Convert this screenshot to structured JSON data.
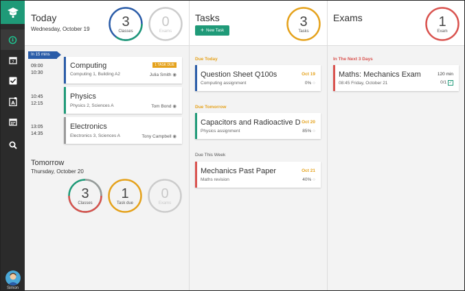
{
  "user": {
    "name": "Simon"
  },
  "colors": {
    "accent": "#1f9a78",
    "blue": "#2a5ca8",
    "orange": "#e5a21c",
    "red": "#d9534f",
    "grey": "#cccccc"
  },
  "sidebar": {
    "items": [
      {
        "icon": "dashboard-icon"
      },
      {
        "icon": "calendar-day-icon"
      },
      {
        "icon": "checkbox-icon"
      },
      {
        "icon": "exam-icon"
      },
      {
        "icon": "calendar-icon"
      },
      {
        "icon": "search-icon"
      }
    ]
  },
  "today": {
    "title": "Today",
    "date": "Wednesday, October 19",
    "rings": [
      {
        "value": "3",
        "label": "Classes",
        "progress": 0.62
      },
      {
        "value": "0",
        "label": "Exams",
        "progress": 0
      }
    ],
    "badge": "In 15 mins",
    "classes": [
      {
        "start": "09:00",
        "end": "10:30",
        "title": "Computing",
        "location": "Computing 1, Building A2",
        "teacher": "Julia Smith",
        "tag": "1 TASK DUE"
      },
      {
        "start": "10:45",
        "end": "12:15",
        "title": "Physics",
        "location": "Physics 2, Sciences A",
        "teacher": "Tom Bond",
        "tag": ""
      },
      {
        "start": "13:05",
        "end": "14:35",
        "title": "Electronics",
        "location": "Electronics 3, Sciences A",
        "teacher": "Tony Campbell",
        "tag": ""
      }
    ]
  },
  "tomorrow": {
    "title": "Tomorrow",
    "date": "Thursday, October 20",
    "rings": [
      {
        "value": "3",
        "label": "Classes"
      },
      {
        "value": "1",
        "label": "Task due"
      },
      {
        "value": "0",
        "label": "Exams"
      }
    ]
  },
  "tasks": {
    "title": "Tasks",
    "new_task_label": "New Task",
    "ring": {
      "value": "3",
      "label": "Tasks"
    },
    "sections": [
      {
        "label": "Due Today",
        "items": [
          {
            "title": "Question Sheet Q100s",
            "subtitle": "Computing assignment",
            "date": "Oct 19",
            "progress": "0%"
          }
        ]
      },
      {
        "label": "Due Tomorrow",
        "items": [
          {
            "title": "Capacitors and Radioactive Decay",
            "subtitle": "Physics assignment",
            "date": "Oct 20",
            "progress": "85%"
          }
        ]
      },
      {
        "label": "Due This Week",
        "items": [
          {
            "title": "Mechanics Past Paper",
            "subtitle": "Maths revision",
            "date": "Oct 21",
            "progress": "40%"
          }
        ]
      }
    ]
  },
  "exams": {
    "title": "Exams",
    "ring": {
      "value": "1",
      "label": "Exam"
    },
    "section_label": "In The Next 3 Days",
    "items": [
      {
        "title": "Maths: Mechanics Exam",
        "subtitle": "08:45 Friday, October 21",
        "duration": "120 min",
        "count": "0/1"
      }
    ]
  }
}
